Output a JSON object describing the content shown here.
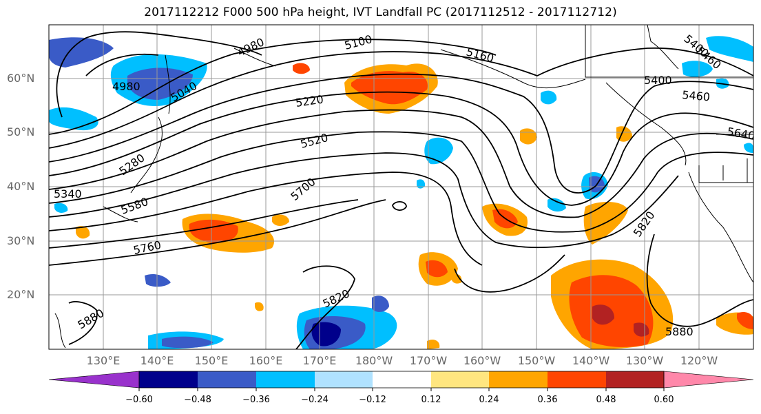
{
  "title": "2017112212 F000 500 hPa height, IVT Landfall PC (2017112512 - 2017112712)",
  "lat_labels": [
    "60°N",
    "50°N",
    "40°N",
    "30°N",
    "20°N"
  ],
  "lon_labels": [
    "130°E",
    "140°E",
    "150°E",
    "160°E",
    "170°E",
    "180°W",
    "170°W",
    "160°W",
    "150°W",
    "140°W",
    "130°W",
    "120°W"
  ],
  "contour_labels": [
    "4980",
    "4980",
    "5040",
    "5100",
    "5160",
    "5220",
    "5280",
    "5340",
    "5400",
    "5460",
    "5400",
    "5460",
    "5520",
    "5580",
    "5640",
    "5700",
    "5760",
    "5820",
    "5820",
    "5880",
    "5880"
  ],
  "colorbar": {
    "ticks": [
      "−0.60",
      "−0.48",
      "−0.36",
      "−0.24",
      "−0.12",
      "0.12",
      "0.24",
      "0.36",
      "0.48",
      "0.60"
    ],
    "colors": [
      "#9932CC",
      "#00008B",
      "#3A5BC7",
      "#00BFFF",
      "#B0E2FF",
      "#FFFFFF",
      "#FFE680",
      "#FFA500",
      "#FF4500",
      "#B22222",
      "#FF88AA"
    ]
  }
}
